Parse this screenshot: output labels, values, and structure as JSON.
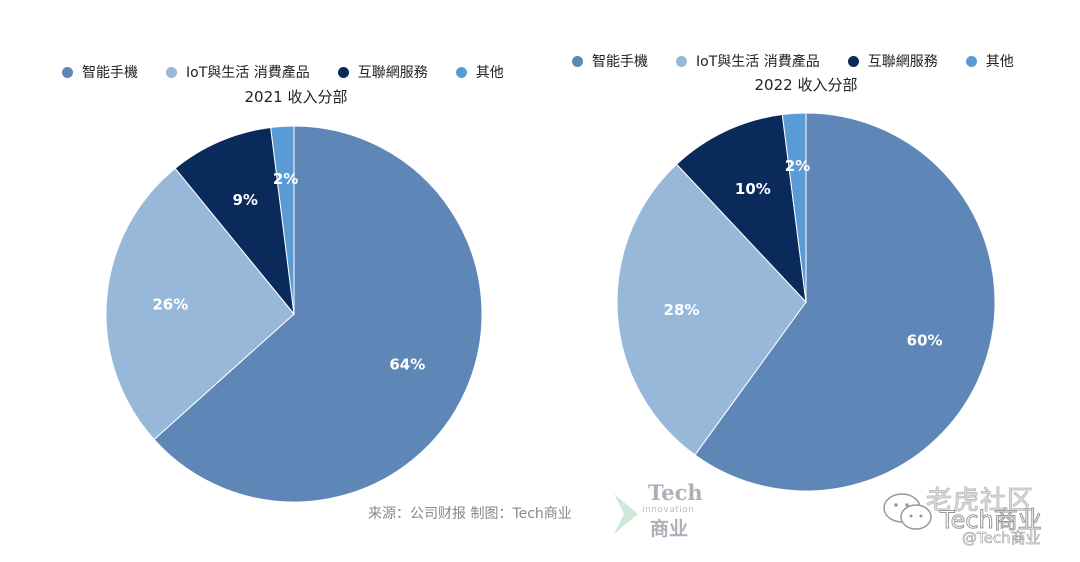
{
  "legend_items": [
    {
      "label": "智能手機",
      "color": "#5e87b8"
    },
    {
      "label": "IoT與生活 消費產品",
      "color": "#98b8da"
    },
    {
      "label": "互聯網服務",
      "color": "#0a2a5c"
    },
    {
      "label": "其他",
      "color": "#5b9bd5"
    }
  ],
  "chart_data": [
    {
      "type": "pie",
      "title": "2021 收入分部",
      "categories": [
        "智能手機",
        "IoT與生活 消費產品",
        "互聯網服務",
        "其他"
      ],
      "values": [
        64,
        26,
        9,
        2
      ],
      "labels": [
        "64%",
        "26%",
        "9%",
        "2%"
      ],
      "colors": [
        "#5e87b8",
        "#98b8da",
        "#0a2a5c",
        "#5b9bd5"
      ],
      "legend": "top"
    },
    {
      "type": "pie",
      "title": "2022 收入分部",
      "categories": [
        "智能手機",
        "IoT與生活 消費產品",
        "互聯網服務",
        "其他"
      ],
      "values": [
        60,
        28,
        10,
        2
      ],
      "labels": [
        "60%",
        "28%",
        "10%",
        "2%"
      ],
      "colors": [
        "#5e87b8",
        "#98b8da",
        "#0a2a5c",
        "#5b9bd5"
      ],
      "legend": "top"
    }
  ],
  "source_text": "来源：公司财报 制图：Tech商业",
  "logo": {
    "tech": "Tech",
    "innovation": "innovation",
    "cn": "商业"
  },
  "watermark": {
    "line1": "老虎社区",
    "line2": "Tech商业",
    "line3": "@Tech商业"
  }
}
